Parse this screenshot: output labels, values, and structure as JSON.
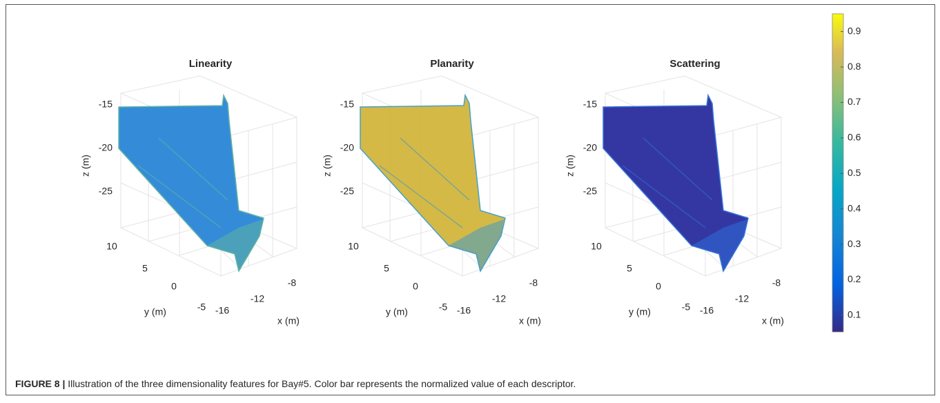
{
  "figure": {
    "panels": [
      {
        "title": "Linearity",
        "z_label": "z (m)",
        "y_label": "y (m)",
        "x_label": "x (m)",
        "z_ticks": [
          -15,
          -20,
          -25
        ],
        "y_ticks": [
          10,
          5,
          0,
          -5
        ],
        "x_ticks": [
          -16,
          -12,
          -8
        ],
        "color": "#2a86d8",
        "accent": "#5fb3a0"
      },
      {
        "title": "Planarity",
        "z_label": "z (m)",
        "y_label": "y (m)",
        "x_label": "x (m)",
        "z_ticks": [
          -15,
          -20,
          -25
        ],
        "y_ticks": [
          10,
          5,
          0,
          -5
        ],
        "x_ticks": [
          -16,
          -12,
          -8
        ],
        "color": "#d2b63e",
        "accent": "#3e9ac8"
      },
      {
        "title": "Scattering",
        "z_label": "z (m)",
        "y_label": "y (m)",
        "x_label": "x (m)",
        "z_ticks": [
          -15,
          -20,
          -25
        ],
        "y_ticks": [
          10,
          5,
          0,
          -5
        ],
        "x_ticks": [
          -16,
          -12,
          -8
        ],
        "color": "#2a2d9e",
        "accent": "#2e6fd8"
      }
    ],
    "colorbar": {
      "lim": [
        0.053,
        0.95
      ],
      "ticks": [
        0.9,
        0.8,
        0.7,
        0.6,
        0.5,
        0.4,
        0.3,
        0.2,
        0.1
      ]
    },
    "caption": {
      "label": "FIGURE 8 |",
      "text": "Illustration of the three dimensionality features for Bay#5. Color bar represents the normalized value of each descriptor."
    }
  }
}
